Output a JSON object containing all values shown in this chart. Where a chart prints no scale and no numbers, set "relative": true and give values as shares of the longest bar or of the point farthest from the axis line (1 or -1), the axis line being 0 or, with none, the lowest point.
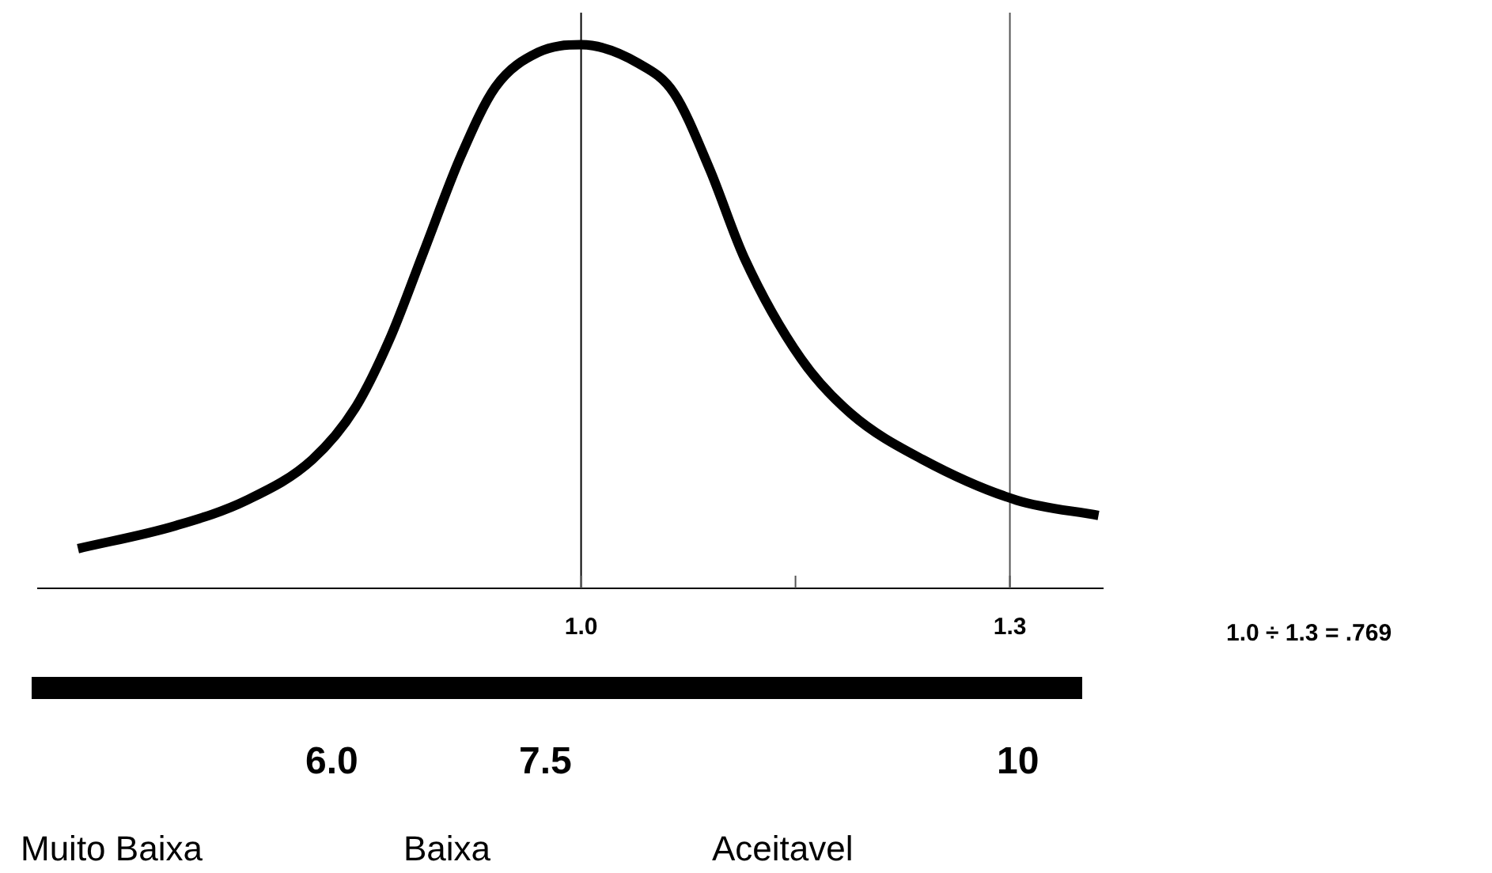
{
  "chart_data": {
    "type": "line",
    "relative": true,
    "x": [
      0.648,
      0.716,
      0.766,
      0.812,
      0.842,
      0.866,
      0.89,
      0.916,
      0.94,
      0.97,
      1.0,
      1.04,
      1.065,
      1.09,
      1.114,
      1.154,
      1.189,
      1.239,
      1.305,
      1.362
    ],
    "series": [
      {
        "color": "#000000",
        "values": [
          0.073,
          0.115,
          0.162,
          0.237,
          0.332,
          0.458,
          0.62,
          0.796,
          0.922,
          0.986,
          1.0,
          0.966,
          0.911,
          0.771,
          0.609,
          0.422,
          0.321,
          0.237,
          0.162,
          0.134
        ]
      }
    ],
    "xlim": [
      0.62,
      1.365
    ],
    "xticks": [
      {
        "value": 1.0,
        "label": "1.0"
      },
      {
        "value": 1.15,
        "label": null
      },
      {
        "value": 1.3,
        "label": "1.3"
      }
    ],
    "ref_lines": [
      {
        "axis": "x",
        "value": 1.0,
        "color": "#000000"
      },
      {
        "axis": "x",
        "value": 1.3,
        "color": "#555555"
      }
    ],
    "grid": false,
    "legend": false,
    "marker": "none",
    "line_style": "solid",
    "annotations": [
      "1.0 ÷ 1.3 = .769",
      "6.0",
      "7.5",
      "10",
      "Muito Baixa",
      "Baixa",
      "Aceitavel"
    ]
  }
}
